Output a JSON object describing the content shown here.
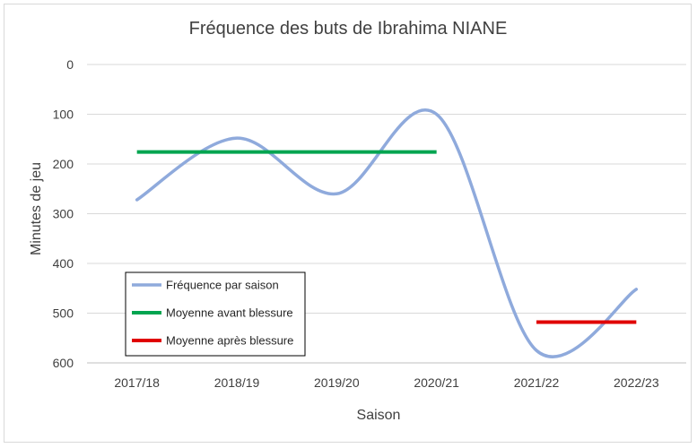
{
  "chart_data": {
    "type": "line",
    "title": "Fréquence des buts de Ibrahima NIANE",
    "xlabel": "Saison",
    "ylabel": "Minutes de jeu",
    "categories": [
      "2017/18",
      "2018/19",
      "2019/20",
      "2020/21",
      "2021/22",
      "2022/23"
    ],
    "ylim": [
      0,
      600
    ],
    "y_reversed": true,
    "y_ticks": [
      0,
      100,
      200,
      300,
      400,
      500,
      600
    ],
    "grid": true,
    "legend_position": "bottom-left",
    "series": [
      {
        "name": "Fréquence par saison",
        "values": [
          272,
          148,
          260,
          100,
          575,
          452
        ],
        "color": "#8faadc",
        "smooth": true
      },
      {
        "name": "Moyenne avant blessure",
        "segment": [
          "2017/18",
          "2020/21"
        ],
        "value": 176,
        "color": "#00a550"
      },
      {
        "name": "Moyenne après blessure",
        "segment": [
          "2021/22",
          "2022/23"
        ],
        "value": 518,
        "color": "#e00000"
      }
    ]
  }
}
